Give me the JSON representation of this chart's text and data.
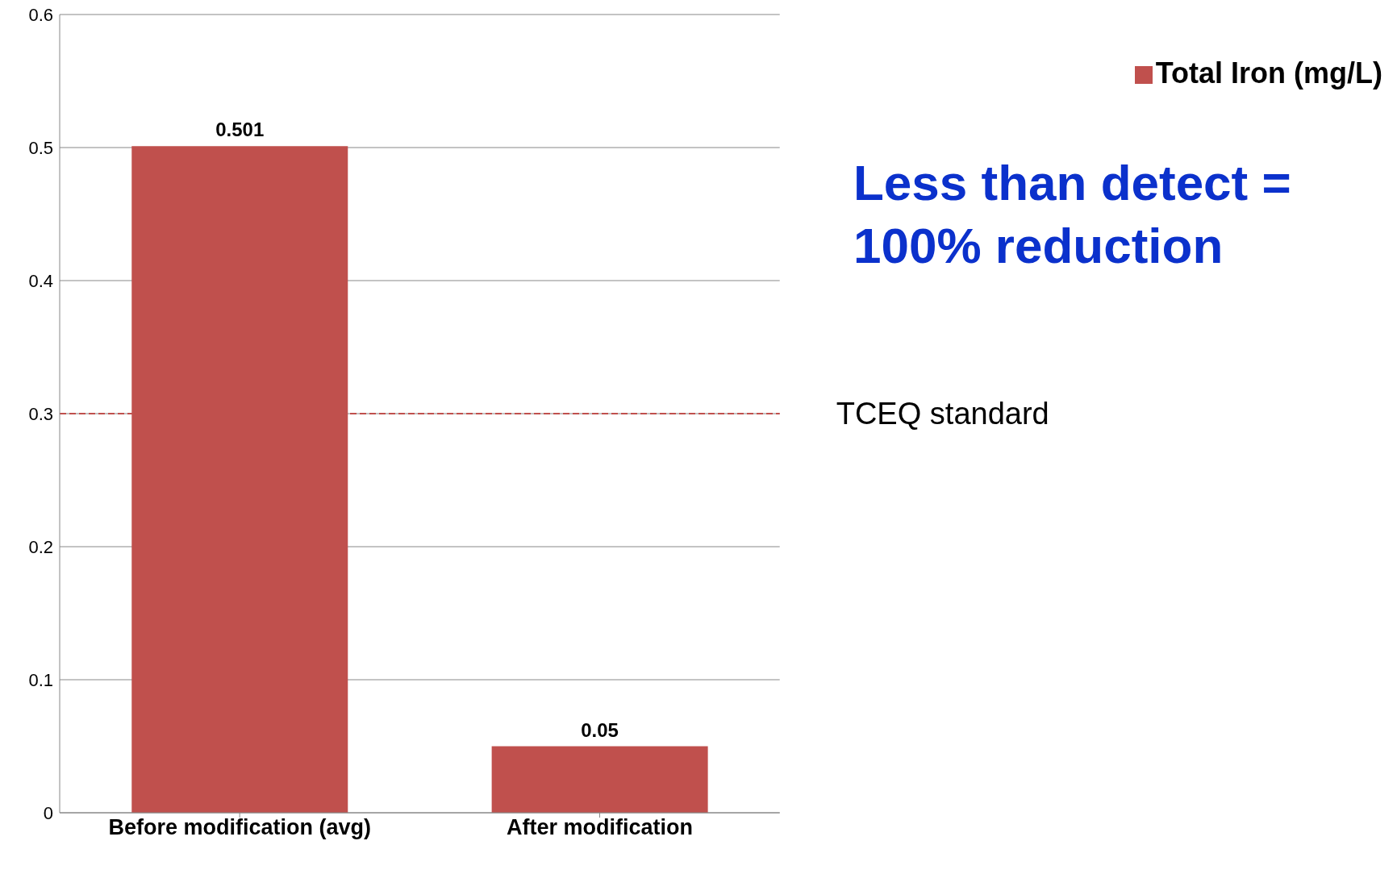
{
  "chart_data": {
    "type": "bar",
    "categories": [
      "Before modification (avg)",
      "After modification"
    ],
    "series": [
      {
        "name": "Total Iron (mg/L)",
        "color": "#c0504d",
        "values": [
          0.501,
          0.05
        ]
      }
    ],
    "ylim": [
      0,
      0.6
    ],
    "yticks": [
      0,
      0.1,
      0.2,
      0.3,
      0.4,
      0.5,
      0.6
    ],
    "grid": "y",
    "legend": "top right",
    "data_labels": true,
    "ref_lines": [
      {
        "axis": "y",
        "value": 0.3,
        "label": "TCEQ standard",
        "color": "#c0504d",
        "line_style": "dashed"
      }
    ],
    "annotations": [
      "Less than detect = 100% reduction"
    ]
  }
}
